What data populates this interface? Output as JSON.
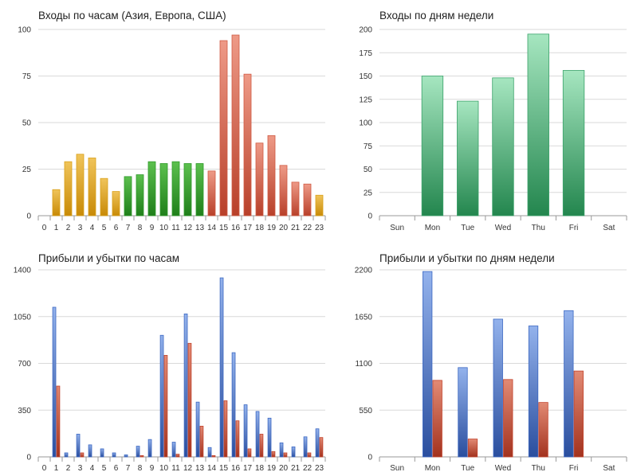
{
  "colors": {
    "gold": "#d9a01a",
    "green": "#2f9a2a",
    "red": "#cf5a43",
    "teal": "#3aa26a",
    "blue": "#3c68c2",
    "darkred": "#c2432c"
  },
  "chart_data": [
    {
      "type": "bar",
      "title": "Входы по часам (Азия, Европа, США)",
      "categories": [
        "0",
        "1",
        "2",
        "3",
        "4",
        "5",
        "6",
        "7",
        "8",
        "9",
        "10",
        "11",
        "12",
        "13",
        "14",
        "15",
        "16",
        "17",
        "18",
        "19",
        "20",
        "21",
        "22",
        "23"
      ],
      "values": [
        0,
        14,
        29,
        33,
        31,
        20,
        13,
        21,
        22,
        29,
        28,
        29,
        28,
        28,
        24,
        94,
        97,
        76,
        39,
        43,
        27,
        18,
        17,
        11
      ],
      "bar_colors": [
        "gold",
        "gold",
        "gold",
        "gold",
        "gold",
        "gold",
        "gold",
        "green",
        "green",
        "green",
        "green",
        "green",
        "green",
        "green",
        "red",
        "red",
        "red",
        "red",
        "red",
        "red",
        "red",
        "red",
        "red",
        "gold"
      ],
      "ylim": [
        0,
        100
      ],
      "yticks": [
        "0",
        "25",
        "50",
        "75",
        "100"
      ],
      "grid": true
    },
    {
      "type": "bar",
      "title": "Входы по дням недели",
      "categories": [
        "Sun",
        "Mon",
        "Tue",
        "Wed",
        "Thu",
        "Fri",
        "Sat"
      ],
      "values": [
        0,
        150,
        123,
        148,
        195,
        156,
        0
      ],
      "ylim": [
        0,
        200
      ],
      "yticks": [
        "0",
        "25",
        "50",
        "75",
        "100",
        "125",
        "150",
        "175",
        "200"
      ],
      "grid": true
    },
    {
      "type": "bar",
      "title": "Прибыли и убытки по часам",
      "categories": [
        "0",
        "1",
        "2",
        "3",
        "4",
        "5",
        "6",
        "7",
        "8",
        "9",
        "10",
        "11",
        "12",
        "13",
        "14",
        "15",
        "16",
        "17",
        "18",
        "19",
        "20",
        "21",
        "22",
        "23"
      ],
      "series": [
        {
          "values": [
            0,
            1120,
            30,
            170,
            90,
            60,
            30,
            15,
            80,
            130,
            910,
            110,
            1070,
            410,
            70,
            1340,
            780,
            390,
            340,
            290,
            105,
            75,
            150,
            210
          ]
        },
        {
          "values": [
            0,
            530,
            0,
            30,
            0,
            0,
            0,
            0,
            10,
            0,
            760,
            20,
            850,
            230,
            10,
            420,
            270,
            60,
            170,
            40,
            30,
            0,
            30,
            145
          ]
        }
      ],
      "ylim": [
        0,
        1400
      ],
      "yticks": [
        "0",
        "350",
        "700",
        "1050",
        "1400"
      ],
      "grid": true
    },
    {
      "type": "bar",
      "title": "Прибыли и убытки по дням недели",
      "categories": [
        "Sun",
        "Mon",
        "Tue",
        "Wed",
        "Thu",
        "Fri",
        "Sat"
      ],
      "series": [
        {
          "values": [
            0,
            2180,
            1050,
            1620,
            1540,
            1720,
            0
          ]
        },
        {
          "values": [
            0,
            900,
            210,
            910,
            640,
            1010,
            0
          ]
        }
      ],
      "ylim": [
        0,
        2200
      ],
      "yticks": [
        "0",
        "550",
        "1100",
        "1650",
        "2200"
      ],
      "grid": true
    }
  ]
}
